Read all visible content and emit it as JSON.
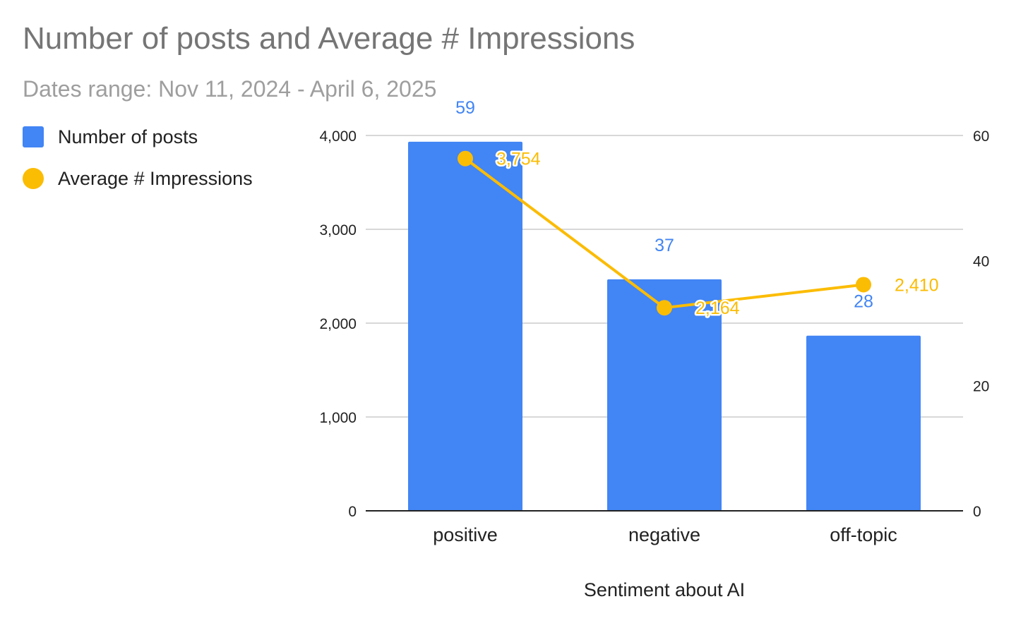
{
  "chart_data": {
    "type": "bar",
    "title": "Number of posts and Average # Impressions",
    "subtitle": "Dates range: Nov 11, 2024 - April 6, 2025",
    "xlabel": "Sentiment about AI",
    "categories": [
      "positive",
      "negative",
      "off-topic"
    ],
    "series": [
      {
        "name": "Number of posts",
        "type": "bar",
        "axis": "right",
        "color": "#4285f4",
        "values": [
          59,
          37,
          28
        ],
        "labels": [
          "59",
          "37",
          "28"
        ]
      },
      {
        "name": "Average # Impressions",
        "type": "line",
        "axis": "left",
        "color": "#fbbc04",
        "values": [
          3754,
          2164,
          2410
        ],
        "labels": [
          "3,754",
          "2,164",
          "2,410"
        ]
      }
    ],
    "y_left": {
      "ylim": [
        0,
        4000
      ],
      "ticks": [
        0,
        1000,
        2000,
        3000,
        4000
      ],
      "tick_labels": [
        "0",
        "1,000",
        "2,000",
        "3,000",
        "4,000"
      ]
    },
    "y_right": {
      "ylim": [
        0,
        60
      ],
      "ticks": [
        0,
        20,
        40,
        60
      ],
      "tick_labels": [
        "0",
        "20",
        "40",
        "60"
      ]
    },
    "grid": true,
    "legend_position": "left"
  }
}
